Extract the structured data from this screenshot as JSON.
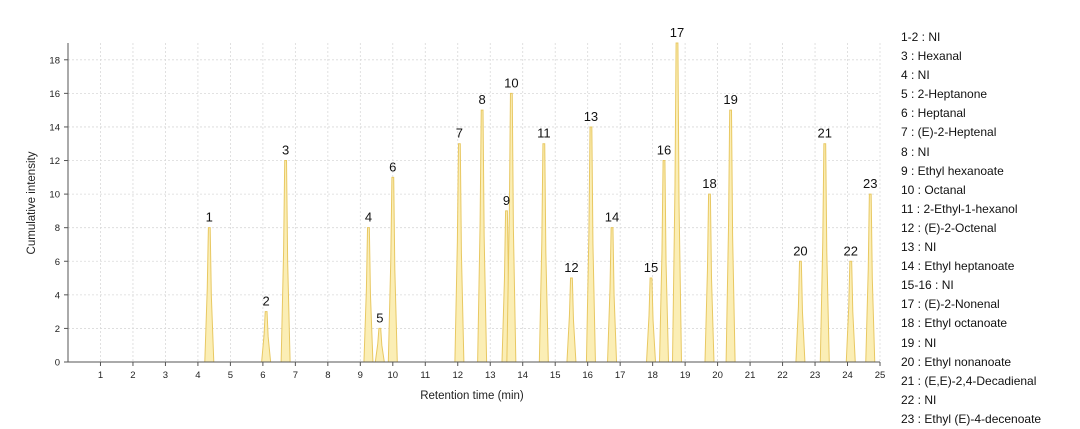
{
  "chart_data": {
    "type": "area",
    "xlabel": "Retention time (min)",
    "ylabel": "Cumulative intensity",
    "xlim": [
      0,
      25
    ],
    "ylim": [
      0,
      19
    ],
    "x_ticks": [
      1,
      2,
      3,
      4,
      5,
      6,
      7,
      8,
      9,
      10,
      11,
      12,
      13,
      14,
      15,
      16,
      17,
      18,
      19,
      20,
      21,
      22,
      23,
      24,
      25
    ],
    "y_ticks": [
      0,
      2,
      4,
      6,
      8,
      10,
      12,
      14,
      16,
      18
    ],
    "grid": true,
    "colors": {
      "fill": "#fbeeb5",
      "stroke": "#e8c862",
      "grid": "#d9d9d9"
    },
    "peaks": [
      {
        "label": "1",
        "rt": 4.35,
        "value": 8
      },
      {
        "label": "2",
        "rt": 6.1,
        "value": 3
      },
      {
        "label": "3",
        "rt": 6.7,
        "value": 12
      },
      {
        "label": "4",
        "rt": 9.25,
        "value": 8
      },
      {
        "label": "5",
        "rt": 9.6,
        "value": 2
      },
      {
        "label": "6",
        "rt": 10.0,
        "value": 11
      },
      {
        "label": "7",
        "rt": 12.05,
        "value": 13
      },
      {
        "label": "8",
        "rt": 12.75,
        "value": 15
      },
      {
        "label": "9",
        "rt": 13.5,
        "value": 9
      },
      {
        "label": "10",
        "rt": 13.65,
        "value": 16
      },
      {
        "label": "11",
        "rt": 14.65,
        "value": 13
      },
      {
        "label": "12",
        "rt": 15.5,
        "value": 5
      },
      {
        "label": "13",
        "rt": 16.1,
        "value": 14
      },
      {
        "label": "14",
        "rt": 16.75,
        "value": 8
      },
      {
        "label": "15",
        "rt": 17.95,
        "value": 5
      },
      {
        "label": "16",
        "rt": 18.35,
        "value": 12
      },
      {
        "label": "17",
        "rt": 18.75,
        "value": 19
      },
      {
        "label": "18",
        "rt": 19.75,
        "value": 10
      },
      {
        "label": "19",
        "rt": 20.4,
        "value": 15
      },
      {
        "label": "20",
        "rt": 22.55,
        "value": 6
      },
      {
        "label": "21",
        "rt": 23.3,
        "value": 13
      },
      {
        "label": "22",
        "rt": 24.1,
        "value": 6
      },
      {
        "label": "23",
        "rt": 24.7,
        "value": 10
      }
    ],
    "legend": [
      "1-2 : NI",
      "3 : Hexanal",
      "4 : NI",
      "5 : 2-Heptanone",
      "6 : Heptanal",
      "7 : (E)-2-Heptenal",
      "8 : NI",
      "9 : Ethyl hexanoate",
      "10 : Octanal",
      "11 : 2-Ethyl-1-hexanol",
      "12 : (E)-2-Octenal",
      "13 : NI",
      "14 : Ethyl heptanoate",
      "15-16 : NI",
      "17 : (E)-2-Nonenal",
      "18 : Ethyl octanoate",
      "19 : NI",
      "20 : Ethyl nonanoate",
      "21 : (E,E)-2,4-Decadienal",
      "22 : NI",
      "23 : Ethyl (E)-4-decenoate"
    ]
  }
}
